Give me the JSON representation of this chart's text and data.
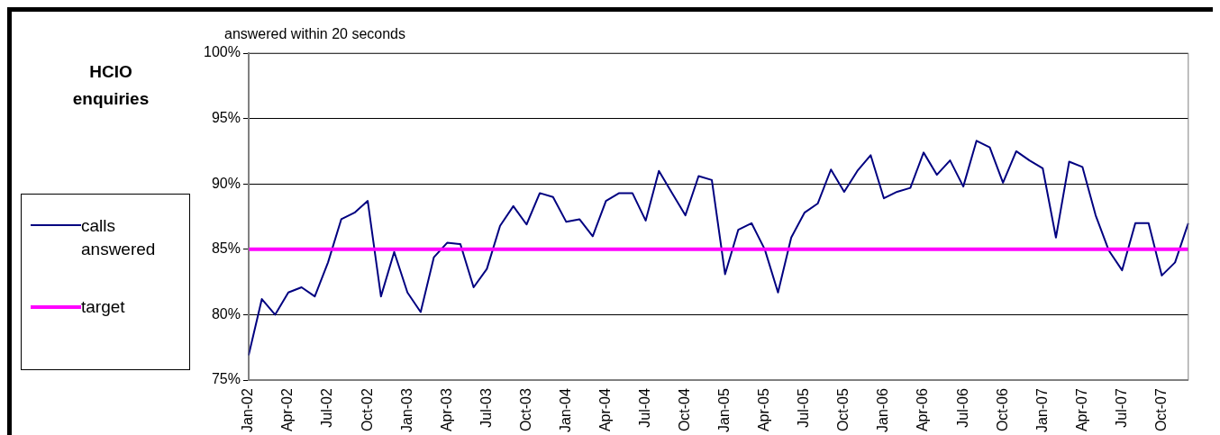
{
  "chart_data": {
    "type": "line",
    "title": "HCIO enquiries",
    "ylabel": "answered within 20 seconds",
    "categories": [
      "Jan-02",
      null,
      null,
      "Apr-02",
      null,
      null,
      "Jul-02",
      null,
      null,
      "Oct-02",
      null,
      null,
      "Jan-03",
      null,
      null,
      "Apr-03",
      null,
      null,
      "Jul-03",
      null,
      null,
      "Oct-03",
      null,
      null,
      "Jan-04",
      null,
      null,
      "Apr-04",
      null,
      null,
      "Jul-04",
      null,
      null,
      "Oct-04",
      null,
      null,
      "Jan-05",
      null,
      null,
      "Apr-05",
      null,
      null,
      "Jul-05",
      null,
      null,
      "Oct-05",
      null,
      null,
      "Jan-06",
      null,
      null,
      "Apr-06",
      null,
      null,
      "Jul-06",
      null,
      null,
      "Oct-06",
      null,
      null,
      "Jan-07",
      null,
      null,
      "Apr-07",
      null,
      null,
      "Jul-07",
      null,
      null,
      "Oct-07",
      null,
      null
    ],
    "series": [
      {
        "name": "calls answered",
        "color": "#000080",
        "values": [
          76.9,
          81.2,
          80.0,
          81.7,
          82.1,
          81.4,
          84.0,
          87.3,
          87.8,
          88.7,
          81.4,
          84.8,
          81.7,
          80.2,
          84.4,
          85.5,
          85.4,
          82.1,
          83.5,
          86.8,
          88.3,
          86.9,
          89.3,
          89.0,
          87.1,
          87.3,
          86.0,
          88.7,
          89.3,
          89.3,
          87.2,
          91.0,
          89.3,
          87.6,
          90.6,
          90.3,
          83.1,
          86.5,
          87.0,
          85.0,
          81.7,
          85.9,
          87.8,
          88.5,
          91.1,
          89.4,
          91.0,
          92.2,
          88.9,
          89.4,
          89.7,
          92.4,
          90.7,
          91.8,
          89.8,
          93.3,
          92.8,
          90.1,
          92.5,
          91.8,
          91.2,
          85.9,
          91.7,
          91.3,
          87.6,
          84.9,
          83.4,
          87.0,
          87.0,
          83.0,
          84.0,
          87.0
        ]
      }
    ],
    "ref_lines": [
      {
        "axis": "y",
        "value": 85,
        "label": "target",
        "color": "#ff00ff"
      }
    ],
    "ylim": [
      75,
      100
    ],
    "yticks": [
      {
        "value": 75,
        "label": "75%"
      },
      {
        "value": 80,
        "label": "80%"
      },
      {
        "value": 85,
        "label": "85%"
      },
      {
        "value": 90,
        "label": "90%"
      },
      {
        "value": 95,
        "label": "95%"
      },
      {
        "value": 100,
        "label": "100%"
      }
    ],
    "grid": "y",
    "legend": "left",
    "marker": "none",
    "line_style": "solid"
  }
}
